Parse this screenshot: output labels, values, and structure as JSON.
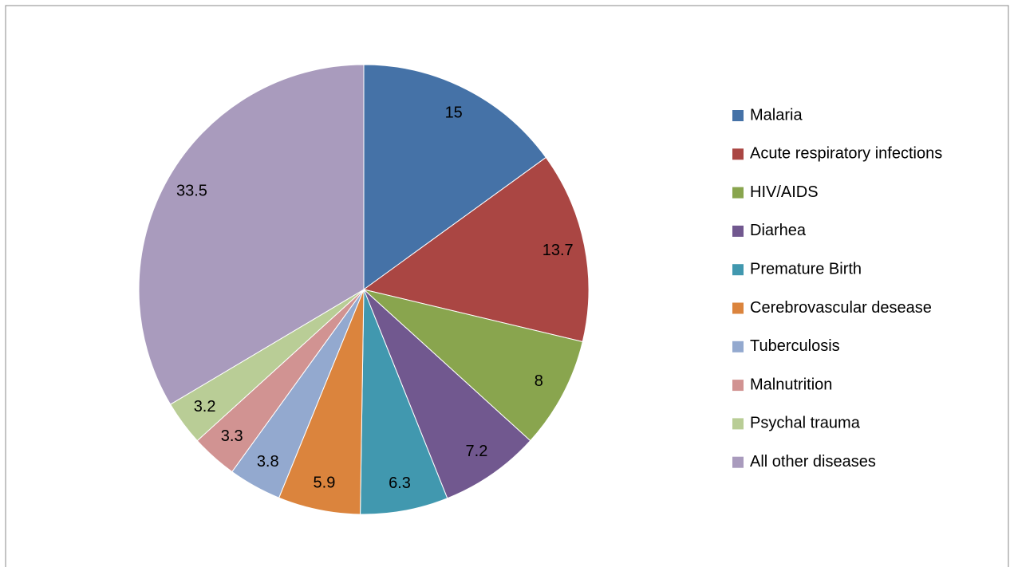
{
  "chart_data": {
    "type": "pie",
    "categories": [
      "Malaria",
      "Acute respiratory infections",
      "HIV/AIDS",
      "Diarhea",
      "Premature Birth",
      "Cerebrovascular desease",
      "Tuberculosis",
      "Malnutrition",
      "Psychal trauma",
      "All other diseases"
    ],
    "values": [
      15,
      13.7,
      8,
      7.2,
      6.3,
      5.9,
      3.8,
      3.3,
      3.2,
      33.5
    ],
    "colors": [
      "#4572a7",
      "#aa4643",
      "#89a54e",
      "#71588f",
      "#4198af",
      "#db843d",
      "#93a9cf",
      "#d19392",
      "#b9cd96",
      "#a99bbd"
    ],
    "legend": "right"
  }
}
